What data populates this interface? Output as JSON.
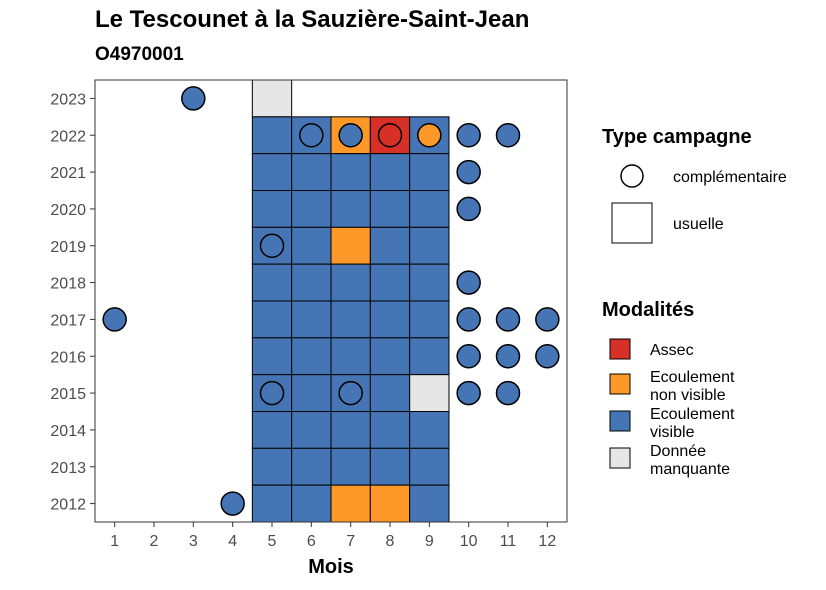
{
  "chart_data": {
    "type": "heatmap",
    "title": "Le Tescounet à la Sauzière-Saint-Jean",
    "subtitle": "O4970001",
    "xlabel": "Mois",
    "ylabel": "",
    "x_ticks": [
      "1",
      "2",
      "3",
      "4",
      "5",
      "6",
      "7",
      "8",
      "9",
      "10",
      "11",
      "12"
    ],
    "y_ticks": [
      "2012",
      "2013",
      "2014",
      "2015",
      "2016",
      "2017",
      "2018",
      "2019",
      "2020",
      "2021",
      "2022",
      "2023"
    ],
    "xlim": [
      0.5,
      12.5
    ],
    "ylim": [
      2011.5,
      2023.5
    ],
    "legend_campaign": {
      "title": "Type campagne",
      "items": [
        {
          "label": "complémentaire",
          "shape": "circle"
        },
        {
          "label": "usuelle",
          "shape": "square"
        }
      ]
    },
    "legend_modalities": {
      "title": "Modalités",
      "items": [
        {
          "key": "assec",
          "label_lines": [
            "Assec"
          ],
          "color": "#d73027"
        },
        {
          "key": "ecoulement_non_visible",
          "label_lines": [
            "Ecoulement",
            "non visible"
          ],
          "color": "#fe9929"
        },
        {
          "key": "ecoulement_visible",
          "label_lines": [
            "Ecoulement",
            "visible"
          ],
          "color": "#4575b4"
        },
        {
          "key": "donnee_manquante",
          "label_lines": [
            "Donnée",
            "manquante"
          ],
          "color": "#e6e6e6"
        }
      ]
    },
    "squares": [
      {
        "year": 2023,
        "month": 5,
        "modality": "donnee_manquante"
      },
      {
        "year": 2022,
        "month": 5,
        "modality": "ecoulement_visible"
      },
      {
        "year": 2022,
        "month": 6,
        "modality": "ecoulement_visible"
      },
      {
        "year": 2022,
        "month": 7,
        "modality": "ecoulement_non_visible"
      },
      {
        "year": 2022,
        "month": 8,
        "modality": "assec"
      },
      {
        "year": 2022,
        "month": 9,
        "modality": "ecoulement_visible"
      },
      {
        "year": 2021,
        "month": 5,
        "modality": "ecoulement_visible"
      },
      {
        "year": 2021,
        "month": 6,
        "modality": "ecoulement_visible"
      },
      {
        "year": 2021,
        "month": 7,
        "modality": "ecoulement_visible"
      },
      {
        "year": 2021,
        "month": 8,
        "modality": "ecoulement_visible"
      },
      {
        "year": 2021,
        "month": 9,
        "modality": "ecoulement_visible"
      },
      {
        "year": 2020,
        "month": 5,
        "modality": "ecoulement_visible"
      },
      {
        "year": 2020,
        "month": 6,
        "modality": "ecoulement_visible"
      },
      {
        "year": 2020,
        "month": 7,
        "modality": "ecoulement_visible"
      },
      {
        "year": 2020,
        "month": 8,
        "modality": "ecoulement_visible"
      },
      {
        "year": 2020,
        "month": 9,
        "modality": "ecoulement_visible"
      },
      {
        "year": 2019,
        "month": 5,
        "modality": "ecoulement_visible"
      },
      {
        "year": 2019,
        "month": 6,
        "modality": "ecoulement_visible"
      },
      {
        "year": 2019,
        "month": 7,
        "modality": "ecoulement_non_visible"
      },
      {
        "year": 2019,
        "month": 8,
        "modality": "ecoulement_visible"
      },
      {
        "year": 2019,
        "month": 9,
        "modality": "ecoulement_visible"
      },
      {
        "year": 2018,
        "month": 5,
        "modality": "ecoulement_visible"
      },
      {
        "year": 2018,
        "month": 6,
        "modality": "ecoulement_visible"
      },
      {
        "year": 2018,
        "month": 7,
        "modality": "ecoulement_visible"
      },
      {
        "year": 2018,
        "month": 8,
        "modality": "ecoulement_visible"
      },
      {
        "year": 2018,
        "month": 9,
        "modality": "ecoulement_visible"
      },
      {
        "year": 2017,
        "month": 5,
        "modality": "ecoulement_visible"
      },
      {
        "year": 2017,
        "month": 6,
        "modality": "ecoulement_visible"
      },
      {
        "year": 2017,
        "month": 7,
        "modality": "ecoulement_visible"
      },
      {
        "year": 2017,
        "month": 8,
        "modality": "ecoulement_visible"
      },
      {
        "year": 2017,
        "month": 9,
        "modality": "ecoulement_visible"
      },
      {
        "year": 2016,
        "month": 5,
        "modality": "ecoulement_visible"
      },
      {
        "year": 2016,
        "month": 6,
        "modality": "ecoulement_visible"
      },
      {
        "year": 2016,
        "month": 7,
        "modality": "ecoulement_visible"
      },
      {
        "year": 2016,
        "month": 8,
        "modality": "ecoulement_visible"
      },
      {
        "year": 2016,
        "month": 9,
        "modality": "ecoulement_visible"
      },
      {
        "year": 2015,
        "month": 5,
        "modality": "ecoulement_visible"
      },
      {
        "year": 2015,
        "month": 6,
        "modality": "ecoulement_visible"
      },
      {
        "year": 2015,
        "month": 7,
        "modality": "ecoulement_visible"
      },
      {
        "year": 2015,
        "month": 8,
        "modality": "ecoulement_visible"
      },
      {
        "year": 2015,
        "month": 9,
        "modality": "donnee_manquante"
      },
      {
        "year": 2014,
        "month": 5,
        "modality": "ecoulement_visible"
      },
      {
        "year": 2014,
        "month": 6,
        "modality": "ecoulement_visible"
      },
      {
        "year": 2014,
        "month": 7,
        "modality": "ecoulement_visible"
      },
      {
        "year": 2014,
        "month": 8,
        "modality": "ecoulement_visible"
      },
      {
        "year": 2014,
        "month": 9,
        "modality": "ecoulement_visible"
      },
      {
        "year": 2013,
        "month": 5,
        "modality": "ecoulement_visible"
      },
      {
        "year": 2013,
        "month": 6,
        "modality": "ecoulement_visible"
      },
      {
        "year": 2013,
        "month": 7,
        "modality": "ecoulement_visible"
      },
      {
        "year": 2013,
        "month": 8,
        "modality": "ecoulement_visible"
      },
      {
        "year": 2013,
        "month": 9,
        "modality": "ecoulement_visible"
      },
      {
        "year": 2012,
        "month": 5,
        "modality": "ecoulement_visible"
      },
      {
        "year": 2012,
        "month": 6,
        "modality": "ecoulement_visible"
      },
      {
        "year": 2012,
        "month": 7,
        "modality": "ecoulement_non_visible"
      },
      {
        "year": 2012,
        "month": 8,
        "modality": "ecoulement_non_visible"
      },
      {
        "year": 2012,
        "month": 9,
        "modality": "ecoulement_visible"
      }
    ],
    "circles": [
      {
        "year": 2023,
        "month": 3,
        "modality": "ecoulement_visible"
      },
      {
        "year": 2022,
        "month": 6,
        "modality": "ecoulement_visible"
      },
      {
        "year": 2022,
        "month": 7,
        "modality": "ecoulement_visible"
      },
      {
        "year": 2022,
        "month": 8,
        "modality": "assec"
      },
      {
        "year": 2022,
        "month": 9,
        "modality": "ecoulement_non_visible"
      },
      {
        "year": 2022,
        "month": 10,
        "modality": "ecoulement_visible"
      },
      {
        "year": 2022,
        "month": 11,
        "modality": "ecoulement_visible"
      },
      {
        "year": 2021,
        "month": 10,
        "modality": "ecoulement_visible"
      },
      {
        "year": 2020,
        "month": 10,
        "modality": "ecoulement_visible"
      },
      {
        "year": 2019,
        "month": 5,
        "modality": "ecoulement_visible"
      },
      {
        "year": 2018,
        "month": 10,
        "modality": "ecoulement_visible"
      },
      {
        "year": 2017,
        "month": 1,
        "modality": "ecoulement_visible"
      },
      {
        "year": 2017,
        "month": 10,
        "modality": "ecoulement_visible"
      },
      {
        "year": 2017,
        "month": 11,
        "modality": "ecoulement_visible"
      },
      {
        "year": 2017,
        "month": 12,
        "modality": "ecoulement_visible"
      },
      {
        "year": 2016,
        "month": 10,
        "modality": "ecoulement_visible"
      },
      {
        "year": 2016,
        "month": 11,
        "modality": "ecoulement_visible"
      },
      {
        "year": 2016,
        "month": 12,
        "modality": "ecoulement_visible"
      },
      {
        "year": 2015,
        "month": 5,
        "modality": "ecoulement_visible"
      },
      {
        "year": 2015,
        "month": 7,
        "modality": "ecoulement_visible"
      },
      {
        "year": 2015,
        "month": 10,
        "modality": "ecoulement_visible"
      },
      {
        "year": 2015,
        "month": 11,
        "modality": "ecoulement_visible"
      },
      {
        "year": 2012,
        "month": 4,
        "modality": "ecoulement_visible"
      }
    ]
  }
}
